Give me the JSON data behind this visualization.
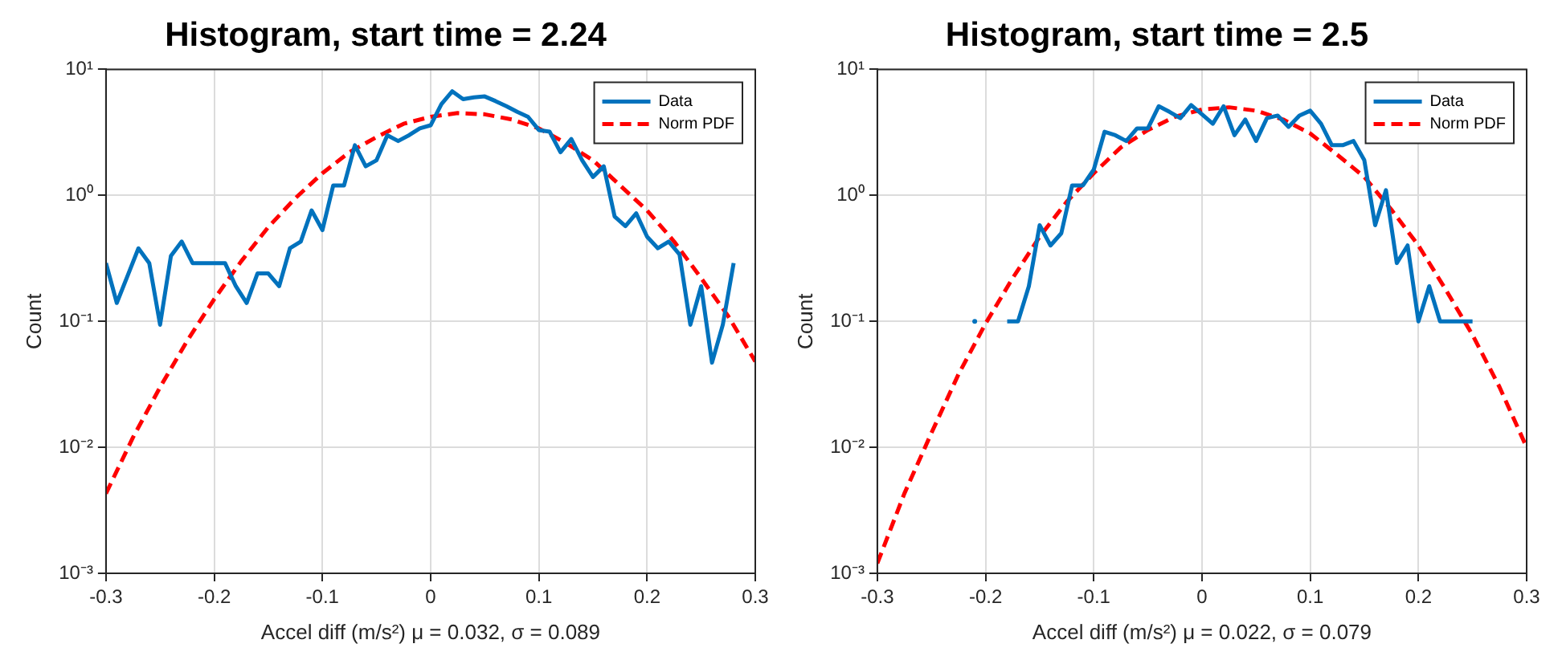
{
  "chart_data": [
    {
      "type": "line",
      "title": "Histogram, start time = 2.24",
      "xlabel": "Accel diff (m/s²) μ = 0.032, σ = 0.089",
      "ylabel": "Count",
      "series": [
        {
          "name": "Data",
          "color": "#0072bd",
          "line_style": "solid",
          "x": [
            -0.3,
            -0.29,
            -0.28,
            -0.27,
            -0.26,
            -0.25,
            -0.24,
            -0.23,
            -0.22,
            -0.21,
            -0.2,
            -0.19,
            -0.18,
            -0.17,
            -0.16,
            -0.15,
            -0.14,
            -0.13,
            -0.12,
            -0.11,
            -0.1,
            -0.09,
            -0.08,
            -0.07,
            -0.06,
            -0.05,
            -0.04,
            -0.03,
            -0.02,
            -0.01,
            0,
            0.01,
            0.02,
            0.03,
            0.04,
            0.05,
            0.06,
            0.07,
            0.08,
            0.09,
            0.1,
            0.11,
            0.12,
            0.13,
            0.14,
            0.15,
            0.16,
            0.17,
            0.18,
            0.19,
            0.2,
            0.21,
            0.22,
            0.23,
            0.24,
            0.25,
            0.26,
            0.27,
            0.28
          ],
          "values": [
            0.29,
            0.14,
            0.23,
            0.38,
            0.29,
            0.094,
            0.33,
            0.43,
            0.29,
            0.29,
            0.29,
            0.29,
            0.19,
            0.14,
            0.24,
            0.24,
            0.19,
            0.38,
            0.43,
            0.76,
            0.53,
            1.2,
            1.2,
            2.5,
            1.7,
            1.9,
            3.0,
            2.7,
            3.0,
            3.4,
            3.6,
            5.3,
            6.7,
            5.8,
            6.0,
            6.1,
            5.6,
            5.1,
            4.6,
            4.2,
            3.3,
            3.2,
            2.2,
            2.8,
            1.9,
            1.4,
            1.7,
            0.68,
            0.57,
            0.72,
            0.47,
            0.38,
            0.43,
            0.34,
            0.094,
            0.19,
            0.047,
            0.094,
            0.29
          ]
        },
        {
          "name": "Norm PDF",
          "color": "#ff0000",
          "line_style": "dashed",
          "x": [
            -0.3,
            -0.275,
            -0.25,
            -0.225,
            -0.2,
            -0.175,
            -0.15,
            -0.125,
            -0.1,
            -0.075,
            -0.05,
            -0.025,
            0,
            0.025,
            0.05,
            0.075,
            0.1,
            0.125,
            0.15,
            0.175,
            0.2,
            0.225,
            0.25,
            0.275,
            0.3
          ],
          "values": [
            0.0043,
            0.012,
            0.03,
            0.07,
            0.15,
            0.3,
            0.56,
            0.95,
            1.5,
            2.2,
            2.9,
            3.7,
            4.2,
            4.5,
            4.4,
            4.0,
            3.4,
            2.6,
            1.9,
            1.2,
            0.76,
            0.43,
            0.22,
            0.11,
            0.048
          ]
        }
      ],
      "xlim": [
        -0.3,
        0.3
      ],
      "xticks": [
        -0.3,
        -0.2,
        -0.1,
        0,
        0.1,
        0.2,
        0.3
      ],
      "ylim": [
        0.001,
        10
      ],
      "yticks": [
        {
          "value": 0.001,
          "label": "10⁻³"
        },
        {
          "value": 0.01,
          "label": "10⁻²"
        },
        {
          "value": 0.1,
          "label": "10⁻¹"
        },
        {
          "value": 1,
          "label": "10⁰"
        },
        {
          "value": 10,
          "label": "10¹"
        }
      ],
      "log": "y",
      "grid": true,
      "legend": "top right",
      "marker": "none"
    },
    {
      "type": "line",
      "title": "Histogram, start time = 2.5",
      "xlabel": "Accel diff (m/s²) μ = 0.022, σ = 0.079",
      "ylabel": "Count",
      "series": [
        {
          "name": "Data",
          "color": "#0072bd",
          "line_style": "solid",
          "x": [
            -0.21,
            -0.2,
            -0.19,
            -0.18,
            -0.17,
            -0.16,
            -0.15,
            -0.14,
            -0.13,
            -0.12,
            -0.11,
            -0.1,
            -0.09,
            -0.08,
            -0.07,
            -0.06,
            -0.05,
            -0.04,
            -0.03,
            -0.02,
            -0.01,
            0,
            0.01,
            0.02,
            0.03,
            0.04,
            0.05,
            0.06,
            0.07,
            0.08,
            0.09,
            0.1,
            0.11,
            0.12,
            0.13,
            0.14,
            0.15,
            0.16,
            0.17,
            0.18,
            0.19,
            0.2,
            0.21,
            0.22,
            0.23,
            0.24,
            0.25
          ],
          "values": [
            0.1,
            null,
            null,
            0.1,
            0.1,
            0.19,
            0.58,
            0.4,
            0.5,
            1.2,
            1.2,
            1.6,
            3.2,
            3.0,
            2.7,
            3.4,
            3.4,
            5.1,
            4.6,
            4.1,
            5.2,
            4.4,
            3.7,
            5.1,
            3.0,
            4.0,
            2.7,
            4.1,
            4.3,
            3.5,
            4.3,
            4.7,
            3.7,
            2.5,
            2.5,
            2.7,
            1.9,
            0.58,
            1.1,
            0.29,
            0.4,
            0.1,
            0.19,
            0.1,
            0.1,
            0.1,
            0.1
          ]
        },
        {
          "name": "Norm PDF",
          "color": "#ff0000",
          "line_style": "dashed",
          "x": [
            -0.3,
            -0.275,
            -0.25,
            -0.225,
            -0.2,
            -0.175,
            -0.15,
            -0.125,
            -0.1,
            -0.075,
            -0.05,
            -0.025,
            0,
            0.025,
            0.05,
            0.075,
            0.1,
            0.125,
            0.15,
            0.175,
            0.2,
            0.225,
            0.25,
            0.275,
            0.3
          ],
          "values": [
            0.0012,
            0.0043,
            0.013,
            0.038,
            0.096,
            0.22,
            0.47,
            0.89,
            1.5,
            2.4,
            3.3,
            4.2,
            4.8,
            5.0,
            4.7,
            4.0,
            3.1,
            2.1,
            1.4,
            0.77,
            0.4,
            0.18,
            0.078,
            0.03,
            0.01
          ]
        }
      ],
      "xlim": [
        -0.3,
        0.3
      ],
      "xticks": [
        -0.3,
        -0.2,
        -0.1,
        0,
        0.1,
        0.2,
        0.3
      ],
      "ylim": [
        0.001,
        10
      ],
      "yticks": [
        {
          "value": 0.001,
          "label": "10⁻³"
        },
        {
          "value": 0.01,
          "label": "10⁻²"
        },
        {
          "value": 0.1,
          "label": "10⁻¹"
        },
        {
          "value": 1,
          "label": "10⁰"
        },
        {
          "value": 10,
          "label": "10¹"
        }
      ],
      "log": "y",
      "grid": true,
      "legend": "top right",
      "marker": "none"
    }
  ]
}
